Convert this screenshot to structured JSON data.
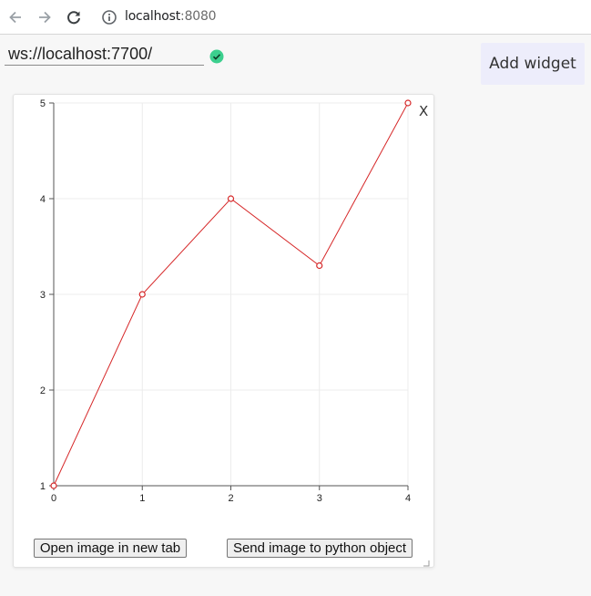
{
  "browser": {
    "url_host": "localhost",
    "url_port": ":8080"
  },
  "connection": {
    "ws_url": "ws://localhost:7700/",
    "status_icon": "check-circle-icon",
    "status_color": "#3ccf8e"
  },
  "toolbar": {
    "add_widget_label": "Add widget"
  },
  "widget": {
    "close_label": "X",
    "open_image_label": "Open image in new tab",
    "send_image_label": "Send image to python object"
  },
  "chart_data": {
    "type": "line",
    "x": [
      0,
      1,
      2,
      3,
      4
    ],
    "y": [
      1,
      3,
      4,
      3.3,
      5
    ],
    "xlim": [
      0,
      4
    ],
    "ylim": [
      1,
      5
    ],
    "xticks": [
      0,
      1,
      2,
      3,
      4
    ],
    "yticks": [
      1,
      2,
      3,
      4,
      5
    ],
    "grid": true,
    "line_color": "#d62728",
    "title": "",
    "xlabel": "",
    "ylabel": ""
  }
}
